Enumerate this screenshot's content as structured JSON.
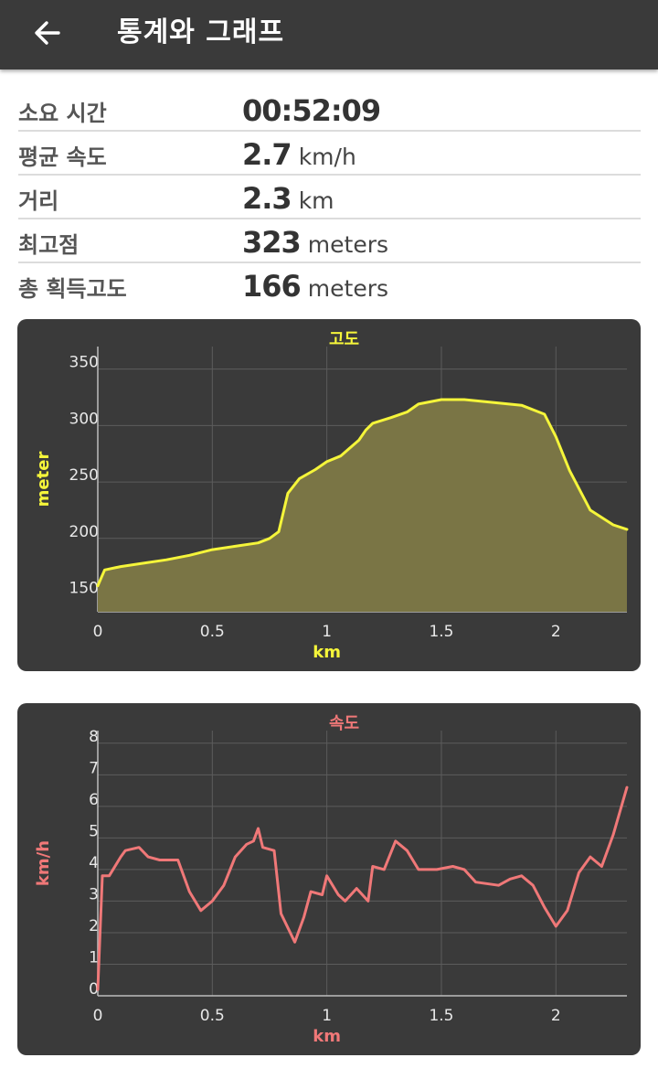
{
  "header": {
    "title": "통계와 그래프",
    "back_icon": "arrow-left-icon"
  },
  "stats": [
    {
      "label": "소요 시간",
      "value": "00:52:09",
      "unit": ""
    },
    {
      "label": "평균 속도",
      "value": "2.7",
      "unit": "km/h"
    },
    {
      "label": "거리",
      "value": "2.3",
      "unit": "km"
    },
    {
      "label": "최고점",
      "value": "323",
      "unit": "meters"
    },
    {
      "label": "총 획득고도",
      "value": "166",
      "unit": "meters"
    }
  ],
  "colors": {
    "appbar": "#3a3a3a",
    "card": "#3a3a3a",
    "elevation": "#f5f53a",
    "elevation_fill": "#7a7545",
    "speed": "#f07878"
  },
  "chart_data": [
    {
      "type": "area",
      "title": "고도",
      "xlabel": "km",
      "ylabel": "meter",
      "xlim": [
        0,
        2.31
      ],
      "ylim": [
        135,
        370
      ],
      "x_ticks": [
        "0",
        "0.5",
        "1",
        "1.5",
        "2"
      ],
      "y_ticks": [
        "150",
        "200",
        "250",
        "300",
        "350"
      ],
      "grid": true,
      "x": [
        0,
        0.03,
        0.1,
        0.2,
        0.3,
        0.4,
        0.5,
        0.6,
        0.7,
        0.75,
        0.79,
        0.83,
        0.88,
        0.95,
        1.0,
        1.06,
        1.14,
        1.17,
        1.2,
        1.28,
        1.35,
        1.4,
        1.5,
        1.6,
        1.7,
        1.85,
        1.95,
        2.0,
        2.06,
        2.15,
        2.25,
        2.31
      ],
      "values": [
        158,
        172,
        175,
        178,
        181,
        185,
        190,
        193,
        196,
        200,
        206,
        240,
        253,
        261,
        268,
        273,
        287,
        296,
        302,
        307,
        312,
        319,
        323,
        323,
        321,
        318,
        310,
        290,
        260,
        225,
        212,
        208
      ]
    },
    {
      "type": "line",
      "title": "속도",
      "xlabel": "km",
      "ylabel": "km/h",
      "xlim": [
        0,
        2.31
      ],
      "ylim": [
        0,
        8.4
      ],
      "x_ticks": [
        "0",
        "0.5",
        "1",
        "1.5",
        "2"
      ],
      "y_ticks": [
        "0",
        "1",
        "2",
        "3",
        "4",
        "5",
        "6",
        "7",
        "8"
      ],
      "grid": true,
      "x": [
        0,
        0.02,
        0.05,
        0.1,
        0.12,
        0.18,
        0.22,
        0.27,
        0.35,
        0.4,
        0.45,
        0.5,
        0.55,
        0.6,
        0.65,
        0.68,
        0.7,
        0.72,
        0.77,
        0.8,
        0.86,
        0.9,
        0.93,
        0.98,
        1.0,
        1.05,
        1.08,
        1.13,
        1.18,
        1.2,
        1.25,
        1.3,
        1.35,
        1.4,
        1.48,
        1.55,
        1.6,
        1.65,
        1.75,
        1.8,
        1.85,
        1.9,
        1.95,
        2.0,
        2.05,
        2.1,
        2.15,
        2.2,
        2.25,
        2.31
      ],
      "values": [
        0.2,
        3.8,
        3.8,
        4.4,
        4.6,
        4.7,
        4.4,
        4.3,
        4.3,
        3.3,
        2.7,
        3.0,
        3.5,
        4.4,
        4.8,
        4.9,
        5.3,
        4.7,
        4.6,
        2.6,
        1.7,
        2.5,
        3.3,
        3.2,
        3.8,
        3.2,
        3.0,
        3.4,
        3.0,
        4.1,
        4.0,
        4.9,
        4.6,
        4.0,
        4.0,
        4.1,
        4.0,
        3.6,
        3.5,
        3.7,
        3.8,
        3.5,
        2.8,
        2.2,
        2.7,
        3.9,
        4.4,
        4.1,
        5.1,
        6.6
      ]
    }
  ]
}
